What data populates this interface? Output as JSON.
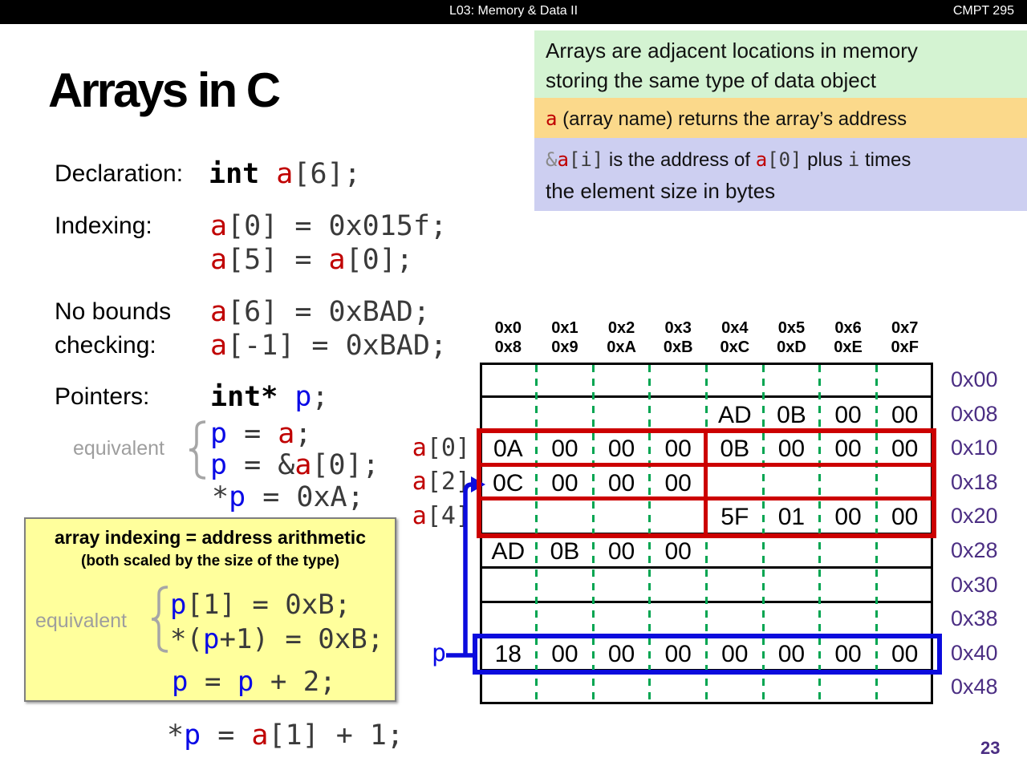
{
  "header": {
    "lecture": "L03:  Memory & Data II",
    "course": "CMPT 295",
    "page": "23"
  },
  "title": "Arrays in C",
  "callouts": {
    "green_line1": "Arrays are adjacent locations in memory",
    "green_line2": "storing the same type of data object",
    "orange_tokens": [
      [
        "r",
        "a"
      ],
      [
        "s",
        " (array name) returns the array’s address"
      ]
    ],
    "blue_tokens_line1": [
      [
        "g",
        "&"
      ],
      [
        "r",
        "a"
      ],
      [
        "k",
        "[i]"
      ],
      [
        "s",
        " is the address of "
      ],
      [
        "r",
        "a"
      ],
      [
        "k",
        "[0]"
      ],
      [
        "s",
        " plus "
      ],
      [
        "k",
        "i"
      ],
      [
        "s",
        " times"
      ]
    ],
    "blue_line2": "the element size in bytes"
  },
  "sections": {
    "declaration_label": "Declaration:",
    "declaration_code": [
      [
        "K",
        "int "
      ],
      [
        "r",
        "a"
      ],
      [
        "k",
        "[6];"
      ]
    ],
    "indexing_label": "Indexing:",
    "indexing_code1": [
      [
        "r",
        "a"
      ],
      [
        "k",
        "[0] = 0x015f;"
      ]
    ],
    "indexing_code2": [
      [
        "r",
        "a"
      ],
      [
        "k",
        "[5] = "
      ],
      [
        "r",
        "a"
      ],
      [
        "k",
        "[0];"
      ]
    ],
    "bounds_label1": "No bounds",
    "bounds_label2": "checking:",
    "bounds_code1": [
      [
        "r",
        "a"
      ],
      [
        "k",
        "[6] = 0xBAD;"
      ]
    ],
    "bounds_code2": [
      [
        "r",
        "a"
      ],
      [
        "k",
        "[-1] = 0xBAD;"
      ]
    ],
    "pointers_label": "Pointers:",
    "pointers_code": [
      [
        "K",
        "int* "
      ],
      [
        "b",
        "p"
      ],
      [
        "k",
        ";"
      ]
    ],
    "equivalent_label": "equivalent",
    "equiv_code1": [
      [
        "b",
        "p"
      ],
      [
        "k",
        " = "
      ],
      [
        "r",
        "a"
      ],
      [
        "k",
        ";"
      ]
    ],
    "equiv_code2": [
      [
        "b",
        "p"
      ],
      [
        "k",
        " = &"
      ],
      [
        "r",
        "a"
      ],
      [
        "k",
        "[0];"
      ]
    ],
    "star_code": [
      [
        "k",
        "*"
      ],
      [
        "b",
        "p"
      ],
      [
        "k",
        " = 0xA;"
      ]
    ]
  },
  "yellow_box": {
    "title1": "array indexing = address arithmetic",
    "title2": "(both scaled by the size of the type)",
    "equivalent_label": "equivalent",
    "code1": [
      [
        "b",
        "p"
      ],
      [
        "k",
        "[1] = 0xB;"
      ]
    ],
    "code2": [
      [
        "k",
        "*("
      ],
      [
        "b",
        "p"
      ],
      [
        "k",
        "+1) = 0xB;"
      ]
    ],
    "code3": [
      [
        "b",
        "p"
      ],
      [
        "k",
        " = "
      ],
      [
        "b",
        "p"
      ],
      [
        "k",
        " + 2;"
      ]
    ]
  },
  "bottom_code": [
    [
      "k",
      "*"
    ],
    [
      "b",
      "p"
    ],
    [
      "k",
      " = "
    ],
    [
      "r",
      "a"
    ],
    [
      "k",
      "[1] + 1;"
    ]
  ],
  "memory": {
    "col_headers_top": [
      "0x0",
      "0x1",
      "0x2",
      "0x3",
      "0x4",
      "0x5",
      "0x6",
      "0x7"
    ],
    "col_headers_bottom": [
      "0x8",
      "0x9",
      "0xA",
      "0xB",
      "0xC",
      "0xD",
      "0xE",
      "0xF"
    ],
    "row_labels": [
      "0x00",
      "0x08",
      "0x10",
      "0x18",
      "0x20",
      "0x28",
      "0x30",
      "0x38",
      "0x40",
      "0x48"
    ],
    "cells": [
      [
        "",
        "",
        "",
        "",
        "",
        "",
        "",
        ""
      ],
      [
        "",
        "",
        "",
        "",
        "AD",
        "0B",
        "00",
        "00"
      ],
      [
        "0A",
        "00",
        "00",
        "00",
        "0B",
        "00",
        "00",
        "00"
      ],
      [
        "0C",
        "00",
        "00",
        "00",
        "",
        "",
        "",
        ""
      ],
      [
        "",
        "",
        "",
        "",
        "5F",
        "01",
        "00",
        "00"
      ],
      [
        "AD",
        "0B",
        "00",
        "00",
        "",
        "",
        "",
        ""
      ],
      [
        "",
        "",
        "",
        "",
        "",
        "",
        "",
        ""
      ],
      [
        "",
        "",
        "",
        "",
        "",
        "",
        "",
        ""
      ],
      [
        "18",
        "00",
        "00",
        "00",
        "00",
        "00",
        "00",
        "00"
      ],
      [
        "",
        "",
        "",
        "",
        "",
        "",
        "",
        ""
      ]
    ],
    "pointer_labels": {
      "a0": [
        [
          "r",
          "a"
        ],
        [
          "k",
          "[0]"
        ]
      ],
      "a2": [
        [
          "r",
          "a"
        ],
        [
          "k",
          "[2]"
        ]
      ],
      "a4": [
        [
          "r",
          "a"
        ],
        [
          "k",
          "[4]"
        ]
      ],
      "p": [
        [
          "b",
          "p"
        ]
      ]
    }
  },
  "colors": {
    "code_red": "#c00000",
    "code_blue": "#0a0ae6",
    "address_purple": "#4b2e83",
    "byte_divider_green": "#00a551",
    "array_outline_red": "#cc0000",
    "pointer_outline_blue": "#0b0bdd"
  }
}
